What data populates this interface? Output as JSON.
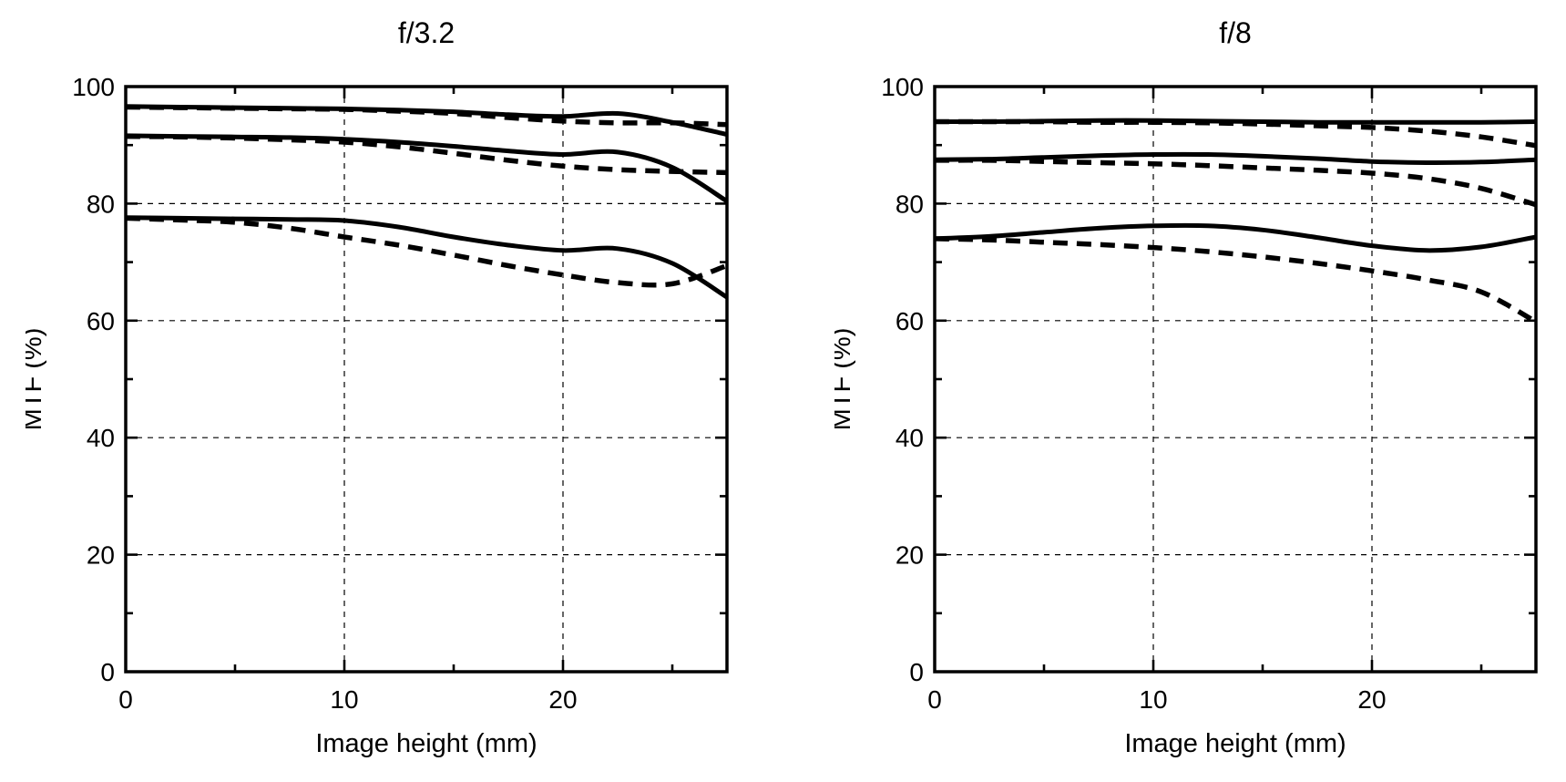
{
  "figure": {
    "background": "#ffffff",
    "line_color": "#000000"
  },
  "chart_data": [
    {
      "type": "line",
      "title": "f/3.2",
      "xlabel": "Image height (mm)",
      "ylabel": "MTF (%)",
      "xlim": [
        0,
        27.5
      ],
      "ylim": [
        0,
        100
      ],
      "grid": "dashed",
      "legend": "none",
      "x_tick_labels": [
        {
          "value": 0,
          "label": "0"
        },
        {
          "value": 10,
          "label": "10"
        },
        {
          "value": 20,
          "label": "20"
        }
      ],
      "y_tick_labels": [
        {
          "value": 0,
          "label": "0"
        },
        {
          "value": 20,
          "label": "20"
        },
        {
          "value": 40,
          "label": "40"
        },
        {
          "value": 60,
          "label": "60"
        },
        {
          "value": 80,
          "label": "80"
        },
        {
          "value": 100,
          "label": "100"
        }
      ],
      "x_minor_ticks": [
        5,
        15,
        25
      ],
      "y_minor_ticks": [
        10,
        30,
        50,
        70,
        90
      ],
      "x_gridlines": [
        10,
        20
      ],
      "y_gridlines": [
        20,
        40,
        60,
        80
      ],
      "x": [
        0,
        2.5,
        5,
        7.5,
        10,
        12.5,
        15,
        17.5,
        20,
        22.5,
        25,
        27.5
      ],
      "series": [
        {
          "name": "solid-curve-1",
          "style": "solid",
          "values": [
            96.6,
            96.5,
            96.4,
            96.3,
            96.2,
            96.0,
            95.7,
            95.2,
            94.9,
            95.4,
            93.9,
            91.8
          ]
        },
        {
          "name": "dashed-curve-1",
          "style": "dashed",
          "values": [
            96.5,
            96.4,
            96.3,
            96.2,
            96.1,
            95.8,
            95.4,
            94.7,
            94.1,
            93.8,
            93.8,
            93.5
          ]
        },
        {
          "name": "solid-curve-2",
          "style": "solid",
          "values": [
            91.6,
            91.5,
            91.4,
            91.3,
            91.0,
            90.5,
            89.8,
            89.0,
            88.4,
            88.8,
            86.2,
            80.4
          ]
        },
        {
          "name": "dashed-curve-2",
          "style": "dashed",
          "values": [
            91.5,
            91.4,
            91.2,
            90.9,
            90.5,
            89.7,
            88.6,
            87.4,
            86.4,
            85.8,
            85.5,
            85.3
          ]
        },
        {
          "name": "solid-curve-3",
          "style": "solid",
          "values": [
            77.6,
            77.5,
            77.4,
            77.3,
            77.1,
            76.0,
            74.3,
            72.9,
            72.0,
            72.3,
            69.8,
            64.0
          ]
        },
        {
          "name": "dashed-curve-3",
          "style": "dashed",
          "values": [
            77.5,
            77.2,
            76.8,
            75.8,
            74.3,
            72.9,
            71.2,
            69.4,
            67.8,
            66.5,
            66.3,
            69.4
          ]
        }
      ]
    },
    {
      "type": "line",
      "title": "f/8",
      "xlabel": "Image height (mm)",
      "ylabel": "MTF (%)",
      "xlim": [
        0,
        27.5
      ],
      "ylim": [
        0,
        100
      ],
      "grid": "dashed",
      "legend": "none",
      "x_tick_labels": [
        {
          "value": 0,
          "label": "0"
        },
        {
          "value": 10,
          "label": "10"
        },
        {
          "value": 20,
          "label": "20"
        }
      ],
      "y_tick_labels": [
        {
          "value": 0,
          "label": "0"
        },
        {
          "value": 20,
          "label": "20"
        },
        {
          "value": 40,
          "label": "40"
        },
        {
          "value": 60,
          "label": "60"
        },
        {
          "value": 80,
          "label": "80"
        },
        {
          "value": 100,
          "label": "100"
        }
      ],
      "x_minor_ticks": [
        5,
        15,
        25
      ],
      "y_minor_ticks": [
        10,
        30,
        50,
        70,
        90
      ],
      "x_gridlines": [
        10,
        20
      ],
      "y_gridlines": [
        20,
        40,
        60,
        80
      ],
      "x": [
        0,
        2.5,
        5,
        7.5,
        10,
        12.5,
        15,
        17.5,
        20,
        22.5,
        25,
        27.5
      ],
      "series": [
        {
          "name": "solid-curve-1",
          "style": "solid",
          "values": [
            94.0,
            94.0,
            94.1,
            94.2,
            94.2,
            94.1,
            94.0,
            93.9,
            93.9,
            93.9,
            93.9,
            94.0
          ]
        },
        {
          "name": "dashed-curve-1",
          "style": "dashed",
          "values": [
            94.0,
            94.0,
            94.0,
            93.9,
            93.9,
            93.8,
            93.6,
            93.3,
            93.0,
            92.4,
            91.4,
            89.9
          ]
        },
        {
          "name": "solid-curve-2",
          "style": "solid",
          "values": [
            87.5,
            87.6,
            87.9,
            88.2,
            88.4,
            88.4,
            88.1,
            87.7,
            87.2,
            87.0,
            87.1,
            87.5
          ]
        },
        {
          "name": "dashed-curve-2",
          "style": "dashed",
          "values": [
            87.4,
            87.4,
            87.2,
            87.0,
            86.8,
            86.5,
            86.1,
            85.7,
            85.2,
            84.3,
            82.6,
            79.8
          ]
        },
        {
          "name": "solid-curve-3",
          "style": "solid",
          "values": [
            74.0,
            74.4,
            75.1,
            75.8,
            76.2,
            76.2,
            75.5,
            74.2,
            72.8,
            72.0,
            72.6,
            74.3
          ]
        },
        {
          "name": "dashed-curve-3",
          "style": "dashed",
          "values": [
            74.0,
            73.8,
            73.4,
            73.0,
            72.5,
            71.8,
            70.9,
            69.8,
            68.5,
            67.0,
            64.9,
            59.8
          ]
        }
      ]
    }
  ]
}
